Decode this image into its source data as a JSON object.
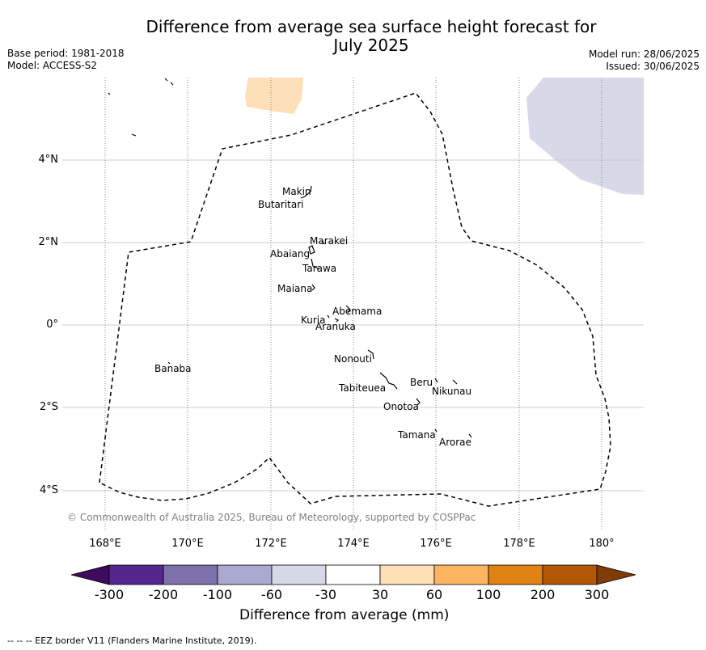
{
  "header": {
    "title_line1": "Difference from average sea surface height forecast for",
    "title_line2": "July 2025",
    "base_period": "Base period: 1981-2018",
    "model": "Model: ACCESS-S2",
    "model_run": "Model run: 28/06/2025",
    "issued": "Issued: 30/06/2025"
  },
  "map": {
    "lat_labels": [
      "4°N",
      "2°N",
      "0°",
      "2°S",
      "4°S"
    ],
    "lon_labels": [
      "168°E",
      "170°E",
      "172°E",
      "174°E",
      "176°E",
      "178°E",
      "180°"
    ],
    "islands": [
      "Makin",
      "Butaritari",
      "Marakei",
      "Abaiang",
      "Tarawa",
      "Maiana",
      "Abemama",
      "Kuria",
      "Aranuka",
      "Nonouti",
      "Banaba",
      "Beru",
      "Nikunau",
      "Tabiteuea",
      "Onotoa",
      "Tamana",
      "Arorae"
    ],
    "copyright": "© Commonwealth of Australia 2025, Bureau of Meteorology, supported by COSPPac",
    "anomaly_fill_colors": {
      "positive_patch": "#fde0b8",
      "negative_patch": "#d8d8e9"
    }
  },
  "colorbar": {
    "title": "Difference from average (mm)",
    "ticks": [
      "-300",
      "-200",
      "-100",
      "-60",
      "-30",
      "30",
      "60",
      "100",
      "200",
      "300"
    ],
    "colors": [
      "#3f0b5f",
      "#54278f",
      "#7d70ab",
      "#aca8d0",
      "#d8d8e9",
      "#ffffff",
      "#fee0b6",
      "#fdb462",
      "#e08214",
      "#b35806",
      "#7f3b08"
    ]
  },
  "footnote": "--  --  -- EEZ border V11 (Flanders Marine Institute, 2019)."
}
